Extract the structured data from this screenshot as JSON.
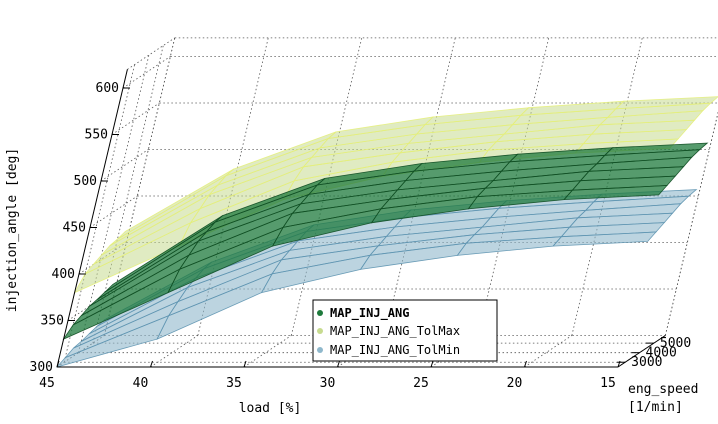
{
  "chart_data": {
    "type": "surface3d",
    "zlabel": "injection_angle [deg]",
    "xlabel": "load [%]",
    "ylabel_line1": "eng_speed",
    "ylabel_line2": "[1/min]",
    "zlim": [
      300,
      620
    ],
    "z_ticks": [
      "300",
      "350",
      "400",
      "450",
      "500",
      "550",
      "600"
    ],
    "x_ticks": [
      "45",
      "40",
      "35",
      "30",
      "25",
      "20",
      "15"
    ],
    "y_ticks": [
      "3000",
      "4000",
      "5000"
    ],
    "grid": true,
    "legend_position": "bottom-center",
    "load_values": [
      45,
      40,
      35,
      30,
      25,
      20,
      15
    ],
    "speed_values": [
      2500,
      3000,
      3500,
      4000,
      4500,
      5000,
      5500
    ],
    "series": [
      {
        "name": "MAP_INJ_ANG",
        "color": "#1e7a3c",
        "edge_color": "#0f4d22",
        "opacity": 0.75,
        "values": [
          [
            330,
            340,
            345,
            350,
            352,
            355,
            358
          ],
          [
            380,
            400,
            410,
            420,
            425,
            430,
            432
          ],
          [
            430,
            445,
            455,
            460,
            465,
            470,
            472
          ],
          [
            455,
            465,
            470,
            475,
            480,
            485,
            488
          ],
          [
            470,
            478,
            482,
            485,
            490,
            495,
            498
          ],
          [
            480,
            485,
            490,
            495,
            498,
            502,
            505
          ],
          [
            485,
            490,
            495,
            500,
            505,
            508,
            510
          ]
        ]
      },
      {
        "name": "MAP_INJ_ANG_TolMax",
        "color": "#c7db8f",
        "edge_color": "#e6f07a",
        "opacity": 0.55,
        "values": [
          [
            380,
            395,
            400,
            405,
            410,
            412,
            415
          ],
          [
            430,
            450,
            460,
            470,
            475,
            480,
            482
          ],
          [
            480,
            495,
            505,
            510,
            515,
            520,
            522
          ],
          [
            505,
            515,
            520,
            525,
            530,
            535,
            538
          ],
          [
            520,
            528,
            532,
            535,
            540,
            545,
            548
          ],
          [
            530,
            535,
            540,
            545,
            548,
            552,
            555
          ],
          [
            535,
            540,
            545,
            550,
            555,
            558,
            560
          ]
        ]
      },
      {
        "name": "MAP_INJ_ANG_TolMin",
        "color": "#8fb8cc",
        "edge_color": "#5d93b0",
        "opacity": 0.6,
        "values": [
          [
            300,
            305,
            310,
            312,
            315,
            318,
            320
          ],
          [
            330,
            350,
            360,
            370,
            375,
            380,
            382
          ],
          [
            380,
            395,
            405,
            410,
            415,
            420,
            422
          ],
          [
            405,
            415,
            420,
            425,
            430,
            435,
            438
          ],
          [
            420,
            428,
            432,
            435,
            440,
            445,
            448
          ],
          [
            430,
            435,
            440,
            445,
            448,
            452,
            455
          ],
          [
            435,
            440,
            445,
            450,
            455,
            458,
            460
          ]
        ]
      }
    ]
  },
  "legend": {
    "items": [
      {
        "label": "MAP_INJ_ANG",
        "color": "#1e7a3c",
        "bold": true
      },
      {
        "label": "MAP_INJ_ANG_TolMax",
        "color": "#c7db8f",
        "bold": false
      },
      {
        "label": "MAP_INJ_ANG_TolMin",
        "color": "#8fb8cc",
        "bold": false
      }
    ]
  }
}
